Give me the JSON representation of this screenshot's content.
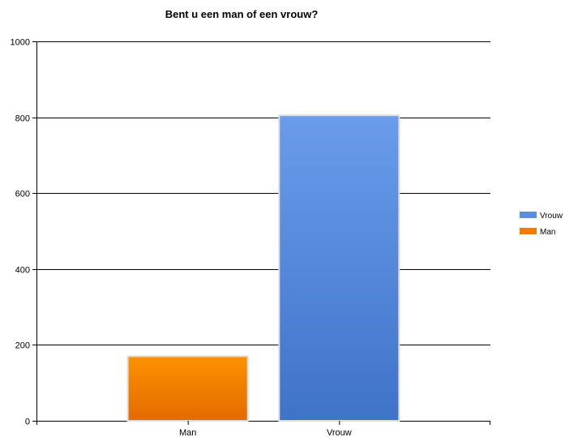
{
  "chart_data": {
    "type": "bar",
    "title": "Bent u een man of een vrouw?",
    "categories": [
      "Man",
      "Vrouw"
    ],
    "values": [
      170,
      805
    ],
    "colors": [
      "#ef7d00",
      "#5b8ee0"
    ],
    "ylim": [
      0,
      1000
    ],
    "yticks": [
      0,
      200,
      400,
      600,
      800,
      1000
    ],
    "grid": true,
    "legend": {
      "placement": "right",
      "entries": [
        {
          "label": "Vrouw",
          "color": "#5b8ee0"
        },
        {
          "label": "Man",
          "color": "#ef7d00"
        }
      ]
    }
  }
}
